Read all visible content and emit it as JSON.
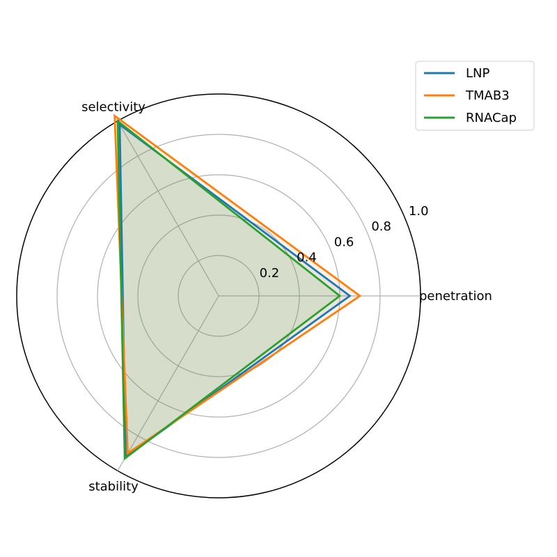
{
  "chart_data": {
    "type": "radar",
    "axes": [
      "penetration",
      "selectivity",
      "stability"
    ],
    "r_ticks": [
      "0.2",
      "0.4",
      "0.6",
      "0.8",
      "1.0"
    ],
    "r_tick_values": [
      0.2,
      0.4,
      0.6,
      0.8,
      1.0
    ],
    "rlim": [
      0,
      1.0
    ],
    "grid": true,
    "legend_position": "top-right",
    "series": [
      {
        "name": "LNP",
        "color": "#1f77b4",
        "values": [
          0.65,
          0.98,
          0.92
        ]
      },
      {
        "name": "TMAB3",
        "color": "#ff7f0e",
        "values": [
          0.7,
          1.03,
          0.9
        ]
      },
      {
        "name": "RNACap",
        "color": "#2ca02c",
        "values": [
          0.6,
          1.0,
          0.93
        ]
      }
    ]
  }
}
